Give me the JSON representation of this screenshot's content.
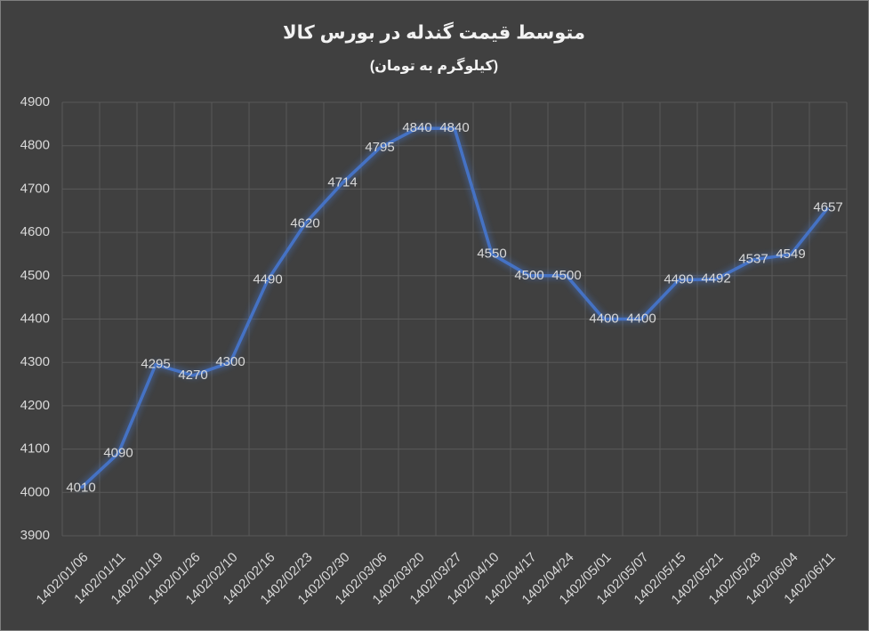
{
  "chart_data": {
    "type": "line",
    "title": "متوسط قیمت گندله در بورس کالا",
    "subtitle": "(کیلوگرم به تومان)",
    "categories": [
      "1402/01/06",
      "1402/01/11",
      "1402/01/19",
      "1402/01/26",
      "1402/02/10",
      "1402/02/16",
      "1402/02/23",
      "1402/02/30",
      "1402/03/06",
      "1402/03/20",
      "1402/03/27",
      "1402/04/10",
      "1402/04/17",
      "1402/04/24",
      "1402/05/01",
      "1402/05/07",
      "1402/05/15",
      "1402/05/21",
      "1402/05/28",
      "1402/06/04",
      "1402/06/11"
    ],
    "values": [
      4010,
      4090,
      4295,
      4270,
      4300,
      4490,
      4620,
      4714,
      4795,
      4840,
      4840,
      4550,
      4500,
      4500,
      4400,
      4400,
      4490,
      4492,
      4537,
      4549,
      4657
    ],
    "color": "#4472c4",
    "ylim": [
      3900,
      4900
    ],
    "yticks": [
      3900,
      4000,
      4100,
      4200,
      4300,
      4400,
      4500,
      4600,
      4700,
      4800,
      4900
    ],
    "grid": true
  }
}
